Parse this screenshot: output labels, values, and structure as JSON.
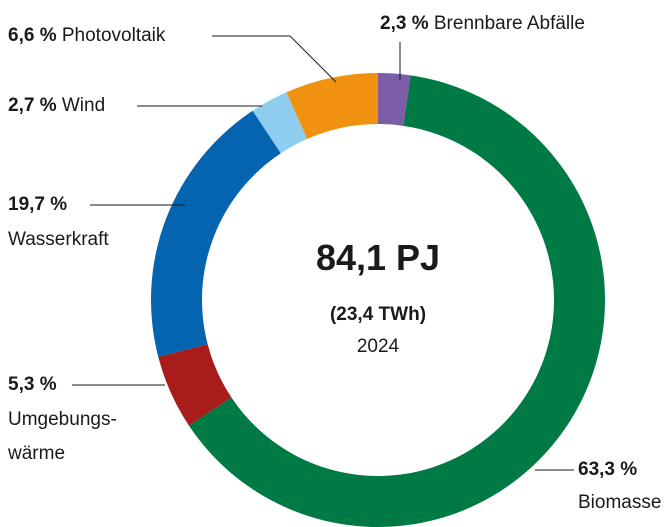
{
  "chart_data": {
    "type": "donut",
    "center_labels": [
      "84,1 PJ",
      "(23,4 TWh)",
      "2024"
    ],
    "categories": [
      "Brennbare Abfälle",
      "Biomasse",
      "Umgebungs-wärme",
      "Wasserkraft",
      "Wind",
      "Photovoltaik"
    ],
    "values": [
      2.3,
      63.3,
      5.3,
      19.7,
      2.7,
      6.6
    ],
    "value_labels": [
      "2,3 %",
      "63,3 %",
      "5,3 %",
      "19,7 %",
      "2,7 %",
      "6,6 %"
    ],
    "colors": [
      "#7b5ea7",
      "#007a45",
      "#a81c1c",
      "#0564b0",
      "#8ecdf0",
      "#f0920f"
    ]
  }
}
